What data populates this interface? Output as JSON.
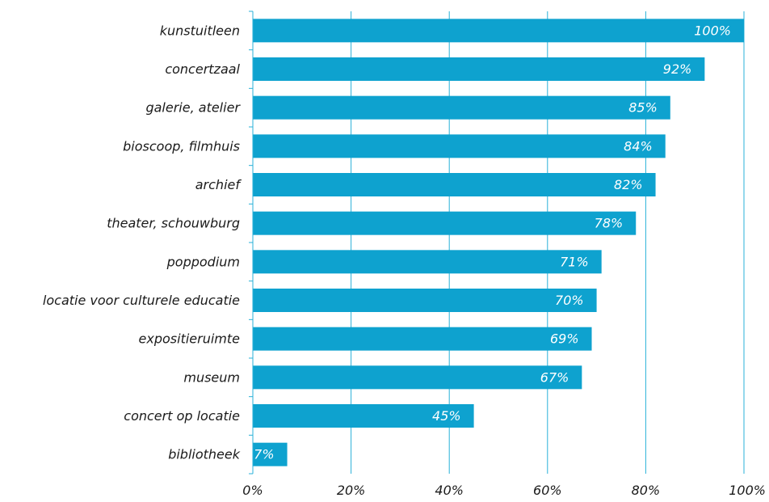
{
  "chart_data": {
    "type": "bar",
    "orientation": "horizontal",
    "categories": [
      "kunstuitleen",
      "concertzaal",
      "galerie, atelier",
      "bioscoop, filmhuis",
      "archief",
      "theater, schouwburg",
      "poppodium",
      "locatie voor culturele educatie",
      "expositieruimte",
      "museum",
      "concert op locatie",
      "bibliotheek"
    ],
    "values": [
      100,
      92,
      85,
      84,
      82,
      78,
      71,
      70,
      69,
      67,
      45,
      7
    ],
    "data_labels": [
      "100%",
      "92%",
      "85%",
      "84%",
      "82%",
      "78%",
      "71%",
      "70%",
      "69%",
      "67%",
      "45%",
      "7%"
    ],
    "xlim": [
      0,
      100
    ],
    "xticks": [
      0,
      20,
      40,
      60,
      80,
      100
    ],
    "xtick_labels": [
      "0%",
      "20%",
      "40%",
      "60%",
      "80%",
      "100%"
    ],
    "title": "",
    "xlabel": "",
    "ylabel": "",
    "grid": "vertical",
    "legend": "none",
    "colors": {
      "bar": "#0ea2cf",
      "grid": "#29b1d8",
      "axis": "#29b1d8",
      "label": "#ffffff"
    }
  }
}
